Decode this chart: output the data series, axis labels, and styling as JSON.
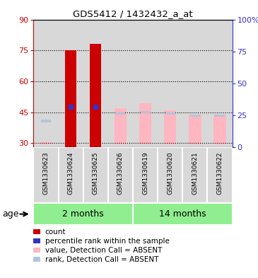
{
  "title": "GDS5412 / 1432432_a_at",
  "samples": [
    "GSM1330623",
    "GSM1330624",
    "GSM1330625",
    "GSM1330626",
    "GSM1330619",
    "GSM1330620",
    "GSM1330621",
    "GSM1330622"
  ],
  "groups": {
    "2 months": [
      0,
      1,
      2,
      3
    ],
    "14 months": [
      4,
      5,
      6,
      7
    ]
  },
  "group_color": "#90EE90",
  "group_divider_color": "#ffffff",
  "ylim_left": [
    28,
    90
  ],
  "ylim_right": [
    0,
    100
  ],
  "yticks_left": [
    30,
    45,
    60,
    75,
    90
  ],
  "yticks_right": [
    0,
    25,
    50,
    75,
    100
  ],
  "ytick_labels_right": [
    "0",
    "25",
    "50",
    "75",
    "100%"
  ],
  "count_values": [
    null,
    75.0,
    78.0,
    null,
    null,
    null,
    null,
    null
  ],
  "rank_values": [
    null,
    47.5,
    47.5,
    null,
    null,
    null,
    null,
    null
  ],
  "absent_value_bottoms": [
    29.5,
    null,
    null,
    29.5,
    29.5,
    29.5,
    29.5,
    29.5
  ],
  "absent_value_tops": [
    30.5,
    null,
    null,
    47.0,
    49.5,
    46.0,
    44.0,
    44.0
  ],
  "absent_rank_bottoms": [
    40.0,
    null,
    null,
    44.0,
    44.5,
    44.0,
    43.0,
    43.0
  ],
  "absent_rank_tops": [
    41.5,
    null,
    null,
    45.0,
    45.5,
    45.0,
    44.0,
    44.0
  ],
  "count_color": "#CC0000",
  "rank_dot_color": "#3333CC",
  "absent_value_color": "#FFB6C1",
  "absent_rank_color": "#B0C4DE",
  "left_tick_color": "#CC0000",
  "right_tick_color": "#3333CC",
  "plot_bg_color": "#D8D8D8",
  "col_bg_color": "#D8D8D8",
  "legend_items": [
    {
      "label": "count",
      "color": "#CC0000"
    },
    {
      "label": "percentile rank within the sample",
      "color": "#3333CC"
    },
    {
      "label": "value, Detection Call = ABSENT",
      "color": "#FFB6C1"
    },
    {
      "label": "rank, Detection Call = ABSENT",
      "color": "#B0C4DE"
    }
  ]
}
